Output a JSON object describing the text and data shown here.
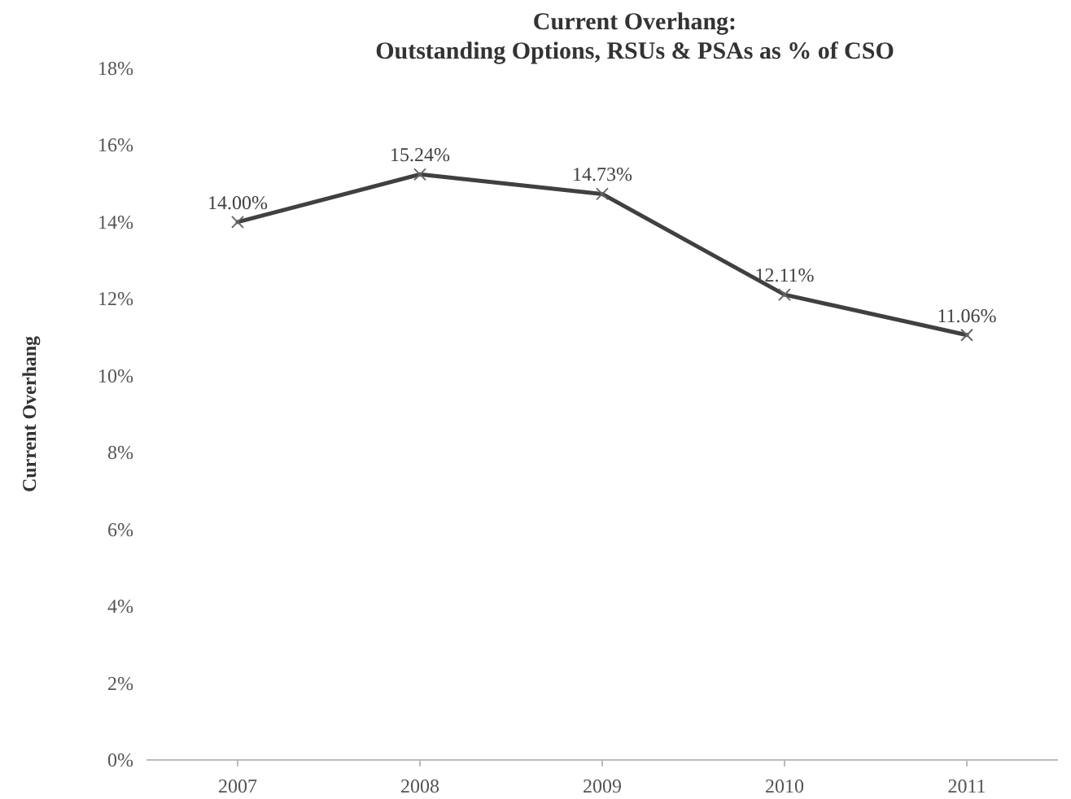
{
  "chart_data": {
    "type": "line",
    "title": "Current Overhang:",
    "subtitle": "Outstanding Options, RSUs & PSAs as % of CSO",
    "ylabel": "Current Overhang",
    "categories": [
      "2007",
      "2008",
      "2009",
      "2010",
      "2011"
    ],
    "series": [
      {
        "color": "#404040",
        "values": [
          14.0,
          15.24,
          14.73,
          12.11,
          11.06
        ],
        "value_labels": [
          "14.00%",
          "15.24%",
          "14.73%",
          "12.11%",
          "11.06%"
        ]
      }
    ],
    "ylim": [
      0,
      18
    ],
    "yticks": [
      {
        "value": 0,
        "label": "0%"
      },
      {
        "value": 2,
        "label": "2%"
      },
      {
        "value": 4,
        "label": "4%"
      },
      {
        "value": 6,
        "label": "6%"
      },
      {
        "value": 8,
        "label": "8%"
      },
      {
        "value": 10,
        "label": "10%"
      },
      {
        "value": 12,
        "label": "12%"
      },
      {
        "value": 14,
        "label": "14%"
      },
      {
        "value": 16,
        "label": "16%"
      },
      {
        "value": 18,
        "label": "18%"
      }
    ],
    "grid": false,
    "marker": "cross",
    "line_style": "solid"
  }
}
